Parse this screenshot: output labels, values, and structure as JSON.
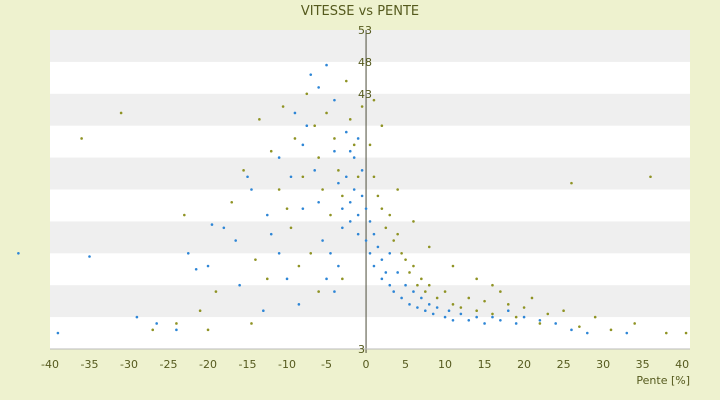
{
  "chart_data": {
    "type": "scatter",
    "title": "VITESSE vs PENTE",
    "xlabel": "Pente [%]",
    "ylabel": "",
    "xlim": [
      -40,
      41
    ],
    "ylim": [
      3,
      53
    ],
    "x_ticks": [
      -40,
      -35,
      -30,
      -25,
      -20,
      -15,
      -10,
      -5,
      0,
      5,
      10,
      15,
      20,
      25,
      30,
      35,
      40
    ],
    "y_ticks": [
      3,
      8,
      13,
      18,
      23,
      28,
      33,
      38,
      43,
      48,
      53
    ],
    "y_tick_labels_visible": [
      "3",
      "43",
      "48",
      "53"
    ],
    "grid": "horizontal alternating bands",
    "legend": "none",
    "series": [
      {
        "color": "#2e86d6",
        "marker": "dot",
        "points": [
          [
            -44,
            18
          ],
          [
            -39,
            5.5
          ],
          [
            -35,
            17.5
          ],
          [
            -29,
            8
          ],
          [
            -26.5,
            7
          ],
          [
            -24,
            6
          ],
          [
            -22.5,
            18
          ],
          [
            -21.5,
            15.5
          ],
          [
            -20,
            16
          ],
          [
            -19.5,
            22.5
          ],
          [
            -16,
            13
          ],
          [
            -15,
            30
          ],
          [
            -14.5,
            28
          ],
          [
            -12,
            21
          ],
          [
            -11,
            18
          ],
          [
            -10,
            14
          ],
          [
            -9,
            40
          ],
          [
            -8,
            35
          ],
          [
            -8,
            25
          ],
          [
            -7,
            46
          ],
          [
            -6.5,
            31
          ],
          [
            -6,
            26
          ],
          [
            -5.5,
            20
          ],
          [
            -5,
            14
          ],
          [
            -4,
            42
          ],
          [
            -4,
            34
          ],
          [
            -3.5,
            29
          ],
          [
            -3,
            25
          ],
          [
            -3,
            22
          ],
          [
            -2.5,
            37
          ],
          [
            -2.5,
            30
          ],
          [
            -2,
            26
          ],
          [
            -2,
            23
          ],
          [
            -1.5,
            33
          ],
          [
            -1.5,
            28
          ],
          [
            -1,
            24
          ],
          [
            -1,
            21
          ],
          [
            -0.5,
            31
          ],
          [
            -0.5,
            27
          ],
          [
            0,
            25
          ],
          [
            0,
            20
          ],
          [
            0.5,
            23
          ],
          [
            0.5,
            18
          ],
          [
            1,
            21
          ],
          [
            1,
            16
          ],
          [
            1.5,
            19
          ],
          [
            2,
            17
          ],
          [
            2,
            14
          ],
          [
            2.5,
            15
          ],
          [
            3,
            18
          ],
          [
            3,
            13
          ],
          [
            3.5,
            12
          ],
          [
            4,
            15
          ],
          [
            4.5,
            11
          ],
          [
            5,
            13
          ],
          [
            5.5,
            10
          ],
          [
            6,
            12
          ],
          [
            6.5,
            9.5
          ],
          [
            7,
            11
          ],
          [
            7.5,
            9
          ],
          [
            8,
            10
          ],
          [
            8.5,
            8.5
          ],
          [
            9,
            9.5
          ],
          [
            10,
            8
          ],
          [
            10.5,
            9
          ],
          [
            11,
            7.5
          ],
          [
            12,
            8.5
          ],
          [
            13,
            7.5
          ],
          [
            14,
            8
          ],
          [
            15,
            7
          ],
          [
            16,
            8
          ],
          [
            17,
            7.5
          ],
          [
            18,
            9
          ],
          [
            19,
            7
          ],
          [
            20,
            8
          ],
          [
            22,
            7.5
          ],
          [
            24,
            7
          ],
          [
            26,
            6
          ],
          [
            28,
            5.5
          ],
          [
            33,
            5.5
          ],
          [
            -13,
            9
          ],
          [
            -11,
            33
          ],
          [
            -9.5,
            30
          ],
          [
            -7.5,
            38
          ],
          [
            -6,
            44
          ],
          [
            -4.5,
            18
          ],
          [
            -3.5,
            16
          ],
          [
            -2,
            34
          ],
          [
            -1,
            36
          ],
          [
            -4,
            12
          ],
          [
            -8.5,
            10
          ],
          [
            -12.5,
            24
          ],
          [
            -16.5,
            20
          ],
          [
            -18,
            22
          ],
          [
            -5,
            47.5
          ]
        ]
      },
      {
        "color": "#8f9324",
        "marker": "dot",
        "points": [
          [
            -36,
            36
          ],
          [
            -31,
            40
          ],
          [
            -27,
            6
          ],
          [
            -23,
            24
          ],
          [
            -21,
            9
          ],
          [
            -19,
            12
          ],
          [
            -17,
            26
          ],
          [
            -15.5,
            31
          ],
          [
            -14,
            17
          ],
          [
            -13.5,
            39
          ],
          [
            -12,
            34
          ],
          [
            -11,
            28
          ],
          [
            -10.5,
            41
          ],
          [
            -9.5,
            22
          ],
          [
            -9,
            36
          ],
          [
            -8,
            30
          ],
          [
            -7.5,
            43
          ],
          [
            -7,
            18
          ],
          [
            -6.5,
            38
          ],
          [
            -6,
            33
          ],
          [
            -5.5,
            28
          ],
          [
            -5,
            40
          ],
          [
            -4.5,
            24
          ],
          [
            -4,
            36
          ],
          [
            -3.5,
            31
          ],
          [
            -3,
            27
          ],
          [
            -2.5,
            45
          ],
          [
            -2,
            39
          ],
          [
            -1.5,
            35
          ],
          [
            -1,
            30
          ],
          [
            -0.5,
            41
          ],
          [
            0.5,
            35
          ],
          [
            1,
            30
          ],
          [
            1.5,
            27
          ],
          [
            2,
            25
          ],
          [
            2.5,
            22
          ],
          [
            3,
            24
          ],
          [
            3.5,
            20
          ],
          [
            4,
            21
          ],
          [
            4.5,
            18
          ],
          [
            5,
            17
          ],
          [
            5.5,
            15
          ],
          [
            6,
            16
          ],
          [
            6.5,
            13
          ],
          [
            7,
            14
          ],
          [
            7.5,
            12
          ],
          [
            8,
            13
          ],
          [
            9,
            11
          ],
          [
            10,
            12
          ],
          [
            11,
            10
          ],
          [
            12,
            9.5
          ],
          [
            13,
            11
          ],
          [
            14,
            9
          ],
          [
            15,
            10.5
          ],
          [
            16,
            8.5
          ],
          [
            17,
            12
          ],
          [
            18,
            10
          ],
          [
            19,
            8
          ],
          [
            20,
            9.5
          ],
          [
            21,
            11
          ],
          [
            22,
            7
          ],
          [
            23,
            8.5
          ],
          [
            25,
            9
          ],
          [
            26,
            29
          ],
          [
            27,
            6.5
          ],
          [
            29,
            8
          ],
          [
            31,
            6
          ],
          [
            34,
            7
          ],
          [
            36,
            30
          ],
          [
            38,
            5.5
          ],
          [
            40.5,
            5.5
          ],
          [
            1,
            42
          ],
          [
            2,
            38
          ],
          [
            -12.5,
            14
          ],
          [
            -10,
            25
          ],
          [
            -8.5,
            16
          ],
          [
            -6,
            12
          ],
          [
            -3,
            14
          ],
          [
            4,
            28
          ],
          [
            6,
            23
          ],
          [
            8,
            19
          ],
          [
            11,
            16
          ],
          [
            14,
            14
          ],
          [
            16,
            13
          ],
          [
            -14.5,
            7
          ],
          [
            -20,
            6
          ],
          [
            -24,
            7
          ]
        ]
      }
    ]
  }
}
